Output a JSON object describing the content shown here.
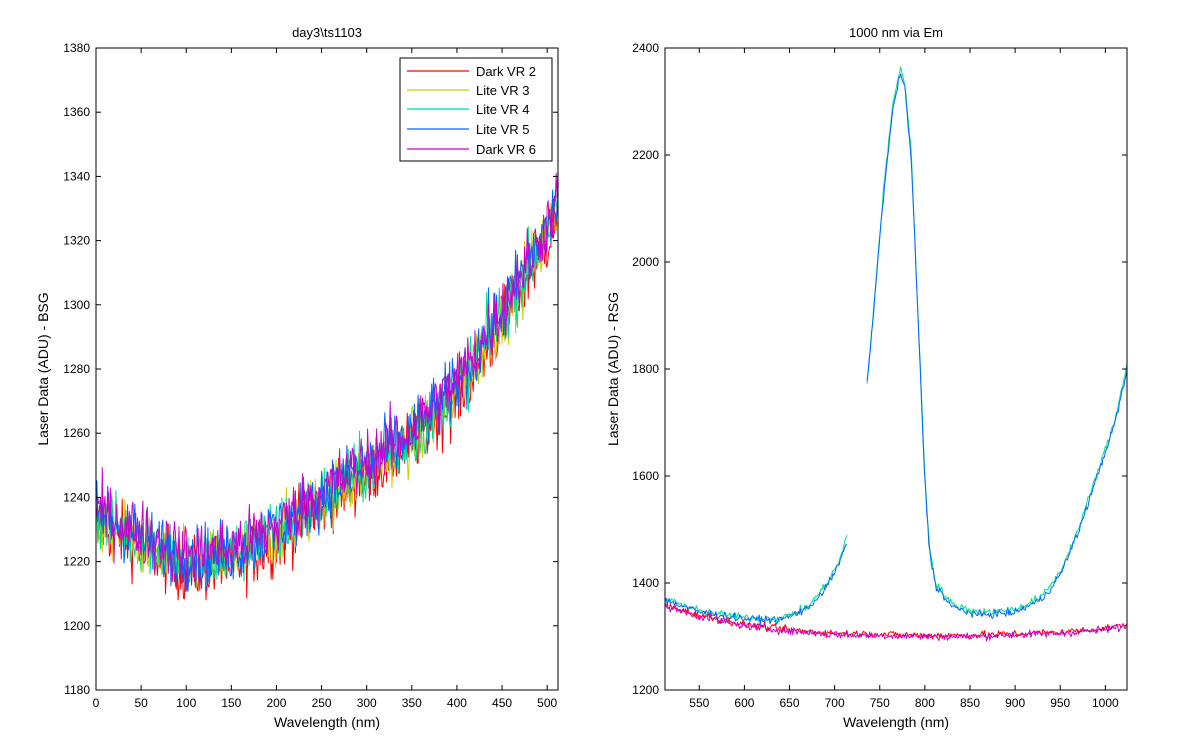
{
  "chart_data": [
    {
      "type": "line",
      "title": "day3\\ts1103",
      "xlabel": "Wavelength (nm)",
      "ylabel": "Laser Data (ADU) - BSG",
      "xlim": [
        0,
        512
      ],
      "ylim": [
        1180,
        1380
      ],
      "xticks": [
        0,
        50,
        100,
        150,
        200,
        250,
        300,
        350,
        400,
        450,
        500
      ],
      "yticks": [
        1180,
        1200,
        1220,
        1240,
        1260,
        1280,
        1300,
        1320,
        1340,
        1360,
        1380
      ],
      "grid": false,
      "legend_position": "top-right",
      "noisy": true,
      "series": [
        {
          "name": "Dark VR 2",
          "color": "#ff0000",
          "x": [
            0,
            50,
            100,
            150,
            200,
            250,
            300,
            350,
            400,
            450,
            500,
            512
          ],
          "values": [
            1232,
            1225,
            1217,
            1219,
            1226,
            1238,
            1247,
            1257,
            1271,
            1294,
            1320,
            1328
          ]
        },
        {
          "name": "Lite VR 3",
          "color": "#cccc00",
          "x": [
            0,
            50,
            100,
            150,
            200,
            250,
            300,
            350,
            400,
            450,
            500,
            512
          ],
          "values": [
            1233,
            1226,
            1219,
            1221,
            1228,
            1239,
            1248,
            1258,
            1273,
            1296,
            1322,
            1330
          ]
        },
        {
          "name": "Lite VR 4",
          "color": "#00dd88",
          "x": [
            0,
            50,
            100,
            150,
            200,
            250,
            300,
            350,
            400,
            450,
            500,
            512
          ],
          "values": [
            1234,
            1227,
            1220,
            1222,
            1229,
            1240,
            1249,
            1259,
            1274,
            1297,
            1323,
            1331
          ]
        },
        {
          "name": "Lite VR 5",
          "color": "#0066ff",
          "x": [
            0,
            50,
            100,
            150,
            200,
            250,
            300,
            350,
            400,
            450,
            500,
            512
          ],
          "values": [
            1235,
            1228,
            1221,
            1223,
            1230,
            1241,
            1250,
            1260,
            1275,
            1298,
            1324,
            1332
          ]
        },
        {
          "name": "Dark VR 6",
          "color": "#cc00cc",
          "x": [
            0,
            50,
            100,
            150,
            200,
            250,
            300,
            350,
            400,
            450,
            500,
            512
          ],
          "values": [
            1236,
            1229,
            1222,
            1224,
            1231,
            1242,
            1251,
            1261,
            1276,
            1299,
            1325,
            1333
          ]
        }
      ]
    },
    {
      "type": "line",
      "title": "1000 nm via Em",
      "xlabel": "Wavelength (nm)",
      "ylabel": "Laser Data (ADU) - RSG",
      "xlim": [
        512,
        1024
      ],
      "ylim": [
        1200,
        2400
      ],
      "xticks": [
        550,
        600,
        650,
        700,
        750,
        800,
        850,
        900,
        950,
        1000
      ],
      "yticks": [
        1200,
        1400,
        1600,
        1800,
        2000,
        2200,
        2400
      ],
      "grid": false,
      "noisy": true,
      "series": [
        {
          "color": "#00dd88",
          "x": [
            512,
            550,
            600,
            640,
            670,
            690,
            705,
            714,
            null,
            736,
            745,
            755,
            765,
            773,
            778,
            785,
            790,
            795,
            800,
            805,
            812,
            830,
            860,
            900,
            930,
            950,
            970,
            990,
            1010,
            1024
          ],
          "values": [
            1370,
            1348,
            1335,
            1333,
            1355,
            1395,
            1440,
            1490,
            null,
            1770,
            1950,
            2150,
            2300,
            2365,
            2330,
            2200,
            2000,
            1800,
            1600,
            1470,
            1400,
            1360,
            1345,
            1350,
            1375,
            1420,
            1500,
            1600,
            1700,
            1810
          ]
        },
        {
          "color": "#0066ff",
          "x": [
            512,
            550,
            600,
            640,
            670,
            690,
            705,
            714,
            null,
            736,
            745,
            755,
            765,
            773,
            778,
            785,
            790,
            795,
            800,
            805,
            812,
            830,
            860,
            900,
            930,
            950,
            970,
            990,
            1010,
            1024
          ],
          "values": [
            1368,
            1346,
            1333,
            1331,
            1352,
            1390,
            1435,
            1480,
            null,
            1770,
            1945,
            2140,
            2290,
            2355,
            2320,
            2190,
            1990,
            1790,
            1590,
            1460,
            1395,
            1355,
            1340,
            1345,
            1370,
            1415,
            1495,
            1595,
            1695,
            1795
          ]
        },
        {
          "color": "#ff0000",
          "x": [
            512,
            550,
            600,
            650,
            700,
            750,
            800,
            850,
            900,
            950,
            1000,
            1024
          ],
          "values": [
            1358,
            1340,
            1322,
            1312,
            1306,
            1304,
            1302,
            1302,
            1305,
            1308,
            1315,
            1322
          ]
        },
        {
          "color": "#cc00cc",
          "x": [
            512,
            550,
            600,
            650,
            700,
            750,
            800,
            850,
            900,
            950,
            1000,
            1024
          ],
          "values": [
            1356,
            1338,
            1320,
            1310,
            1304,
            1302,
            1300,
            1300,
            1303,
            1306,
            1313,
            1320
          ]
        }
      ]
    }
  ]
}
